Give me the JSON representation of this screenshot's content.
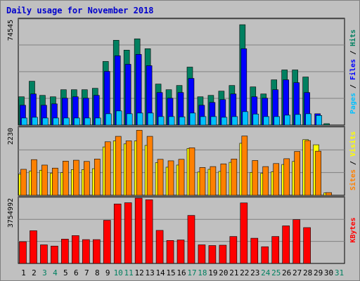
{
  "title": "Daily usage for November 2018",
  "colors": {
    "background": "#c0c0c0",
    "plot": "#c0c0c0",
    "grid": "#808080",
    "title": "#0000cc",
    "hits": "#008060",
    "files": "#0000ff",
    "pages": "#00c0ff",
    "visits": "#ffff00",
    "sites": "#ff8000",
    "kbytes": "#ff0000",
    "weekend_day": "#008060",
    "weekday": "#000000"
  },
  "chart_data": [
    {
      "type": "bar",
      "name": "hits-files-pages",
      "title": "Daily usage for November 2018",
      "ytick_label": "74545",
      "ylim": [
        0,
        74545
      ],
      "axis_labels": [
        {
          "text": "Pages",
          "color": "#00c0ff"
        },
        {
          "text": " / ",
          "color": "#000000"
        },
        {
          "text": "Files",
          "color": "#0000ff"
        },
        {
          "text": " / ",
          "color": "#000000"
        },
        {
          "text": "Hits",
          "color": "#008060"
        }
      ],
      "categories": [
        "1",
        "2",
        "3",
        "4",
        "5",
        "6",
        "7",
        "8",
        "9",
        "10",
        "11",
        "12",
        "13",
        "14",
        "15",
        "16",
        "17",
        "18",
        "19",
        "20",
        "21",
        "22",
        "23",
        "24",
        "25",
        "26",
        "27",
        "28",
        "29",
        "30",
        "31"
      ],
      "series": [
        {
          "name": "Hits",
          "values": [
            20000,
            31000,
            21000,
            20000,
            25000,
            25000,
            25000,
            26000,
            45000,
            60000,
            53000,
            61000,
            54000,
            29000,
            25000,
            28000,
            41000,
            20000,
            21000,
            24000,
            28000,
            71000,
            27000,
            22000,
            32000,
            39000,
            39000,
            34000,
            0,
            500,
            0
          ]
        },
        {
          "name": "Files",
          "values": [
            14000,
            22000,
            14000,
            15000,
            19000,
            20000,
            19000,
            21000,
            38000,
            49000,
            43000,
            50000,
            42000,
            23000,
            19000,
            23000,
            33000,
            14000,
            16000,
            18000,
            22000,
            54000,
            20000,
            19000,
            25000,
            32000,
            30000,
            23000,
            8000,
            0,
            0
          ]
        },
        {
          "name": "Pages",
          "values": [
            5000,
            5500,
            5000,
            5000,
            5000,
            5000,
            5000,
            5000,
            8000,
            10000,
            8000,
            8500,
            8500,
            6000,
            6000,
            5800,
            8500,
            6000,
            6000,
            5500,
            6000,
            9500,
            7800,
            6000,
            6000,
            7000,
            7500,
            8000,
            6800,
            0,
            0
          ]
        }
      ]
    },
    {
      "type": "bar",
      "name": "visits-sites",
      "ytick_label": "2230",
      "ylim": [
        0,
        2230
      ],
      "axis_labels": [
        {
          "text": "Sites",
          "color": "#ff8000"
        },
        {
          "text": " / ",
          "color": "#000000"
        },
        {
          "text": "Visits",
          "color": "#ffff00"
        }
      ],
      "categories": [
        "1",
        "2",
        "3",
        "4",
        "5",
        "6",
        "7",
        "8",
        "9",
        "10",
        "11",
        "12",
        "13",
        "14",
        "15",
        "16",
        "17",
        "18",
        "19",
        "20",
        "21",
        "22",
        "23",
        "24",
        "25",
        "26",
        "27",
        "28",
        "29",
        "30",
        "31"
      ],
      "series": [
        {
          "name": "Visits",
          "values": [
            700,
            800,
            830,
            730,
            750,
            850,
            850,
            880,
            1600,
            1800,
            1700,
            1800,
            1650,
            1080,
            930,
            1000,
            1550,
            770,
            860,
            790,
            1090,
            1720,
            760,
            730,
            780,
            1020,
            1120,
            1840,
            1670,
            80,
            0
          ]
        },
        {
          "name": "Sites",
          "values": [
            860,
            1180,
            1000,
            900,
            1130,
            1160,
            1120,
            1200,
            1770,
            1950,
            1800,
            2150,
            1950,
            1190,
            1140,
            1190,
            1570,
            920,
            950,
            1040,
            1200,
            1960,
            1150,
            950,
            1050,
            1210,
            1450,
            1810,
            1460,
            90,
            0
          ]
        }
      ]
    },
    {
      "type": "bar",
      "name": "kbytes",
      "ytick_label": "3754992",
      "ylim": [
        0,
        3754992
      ],
      "axis_labels": [
        {
          "text": "KBytes",
          "color": "#ff0000"
        }
      ],
      "categories": [
        "1",
        "2",
        "3",
        "4",
        "5",
        "6",
        "7",
        "8",
        "9",
        "10",
        "11",
        "12",
        "13",
        "14",
        "15",
        "16",
        "17",
        "18",
        "19",
        "20",
        "21",
        "22",
        "23",
        "24",
        "25",
        "26",
        "27",
        "28",
        "29",
        "30",
        "31"
      ],
      "series": [
        {
          "name": "KBytes",
          "values": [
            1250000,
            1880000,
            1070000,
            1000000,
            1400000,
            1600000,
            1370000,
            1370000,
            2480000,
            3420000,
            3490000,
            3760000,
            3660000,
            1900000,
            1320000,
            1350000,
            2760000,
            1070000,
            1030000,
            1050000,
            1550000,
            3480000,
            1450000,
            960000,
            1550000,
            2160000,
            2520000,
            2060000,
            0,
            0,
            0
          ]
        }
      ]
    }
  ],
  "days": [
    {
      "label": "1",
      "weekend": false
    },
    {
      "label": "2",
      "weekend": false
    },
    {
      "label": "3",
      "weekend": true
    },
    {
      "label": "4",
      "weekend": true
    },
    {
      "label": "5",
      "weekend": false
    },
    {
      "label": "6",
      "weekend": false
    },
    {
      "label": "7",
      "weekend": false
    },
    {
      "label": "8",
      "weekend": false
    },
    {
      "label": "9",
      "weekend": false
    },
    {
      "label": "10",
      "weekend": true
    },
    {
      "label": "11",
      "weekend": true
    },
    {
      "label": "12",
      "weekend": false
    },
    {
      "label": "13",
      "weekend": false
    },
    {
      "label": "14",
      "weekend": false
    },
    {
      "label": "15",
      "weekend": false
    },
    {
      "label": "16",
      "weekend": false
    },
    {
      "label": "17",
      "weekend": true
    },
    {
      "label": "18",
      "weekend": true
    },
    {
      "label": "19",
      "weekend": false
    },
    {
      "label": "20",
      "weekend": false
    },
    {
      "label": "21",
      "weekend": false
    },
    {
      "label": "22",
      "weekend": false
    },
    {
      "label": "23",
      "weekend": false
    },
    {
      "label": "24",
      "weekend": true
    },
    {
      "label": "25",
      "weekend": true
    },
    {
      "label": "26",
      "weekend": false
    },
    {
      "label": "27",
      "weekend": false
    },
    {
      "label": "28",
      "weekend": false
    },
    {
      "label": "29",
      "weekend": false
    },
    {
      "label": "30",
      "weekend": false
    },
    {
      "label": "31",
      "weekend": true
    }
  ]
}
